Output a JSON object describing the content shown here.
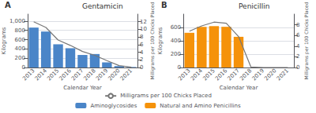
{
  "chart_data": [
    {
      "type": "bar",
      "title": "Gentamicin",
      "annotation": "A",
      "xlabel": "Calendar Year",
      "ylabel": "Kilograms",
      "y2label": "Milligrams per 100 Chicks Placed",
      "categories": [
        "2013",
        "2014",
        "2015",
        "2016",
        "2017",
        "2018",
        "2019",
        "2020",
        "2021"
      ],
      "series": [
        {
          "name": "Aminoglycosides",
          "type": "bar",
          "color": "#4a85c8",
          "values": [
            860,
            775,
            500,
            415,
            270,
            290,
            110,
            30,
            10
          ]
        },
        {
          "name": "Milligrams per 100 Chicks Placed",
          "type": "line",
          "axis": "y2",
          "color": "#777777",
          "values": [
            12.0,
            10.5,
            7.2,
            5.8,
            4.2,
            3.2,
            1.8,
            0.5,
            0.1
          ]
        }
      ],
      "ylim": [
        0,
        1150
      ],
      "yticks": [
        0,
        200,
        400,
        600,
        800,
        {
          "value": 1000,
          "label": "1,000"
        }
      ],
      "y2lim": [
        0,
        14
      ],
      "y2ticks": [
        0,
        2,
        4,
        6,
        8,
        10,
        12
      ],
      "grid": true,
      "legend": "bottom"
    },
    {
      "type": "bar",
      "title": "Penicillin",
      "annotation": "B",
      "xlabel": "Calendar Year",
      "ylabel": "Kilograms",
      "y2label": "Milligrams per 100 Chicks Placed",
      "categories": [
        "2013",
        "2014",
        "2015",
        "2016",
        "2017",
        "2018",
        "2019",
        "2020",
        "2021"
      ],
      "series": [
        {
          "name": "Natural and Amino Penicillins",
          "type": "bar",
          "color": "#f5920a",
          "values": [
            520,
            610,
            620,
            610,
            460,
            0,
            0,
            0,
            0
          ]
        },
        {
          "name": "Milligrams per 100 Chicks Placed",
          "type": "line",
          "axis": "y2",
          "color": "#777777",
          "values": [
            6.8,
            7.8,
            8.5,
            8.3,
            5.8,
            0.1,
            0.0,
            0.0,
            0.0
          ]
        }
      ],
      "ylim": [
        0,
        800
      ],
      "yticks": [
        0,
        200,
        400,
        600
      ],
      "y2lim": [
        0,
        10
      ],
      "y2ticks": [
        0,
        2,
        4,
        6,
        8
      ],
      "grid": true,
      "legend": "bottom"
    }
  ]
}
